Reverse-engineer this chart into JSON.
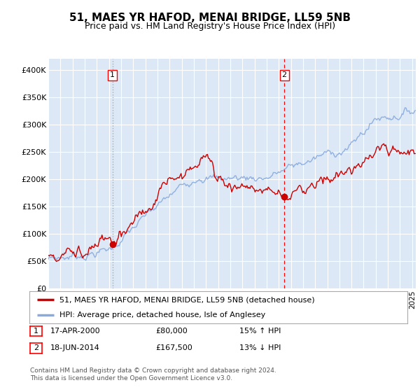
{
  "title": "51, MAES YR HAFOD, MENAI BRIDGE, LL59 5NB",
  "subtitle": "Price paid vs. HM Land Registry's House Price Index (HPI)",
  "background_color": "#ffffff",
  "plot_bg_color": "#dce8f5",
  "ylim": [
    0,
    420000
  ],
  "yticks": [
    0,
    50000,
    100000,
    150000,
    200000,
    250000,
    300000,
    350000,
    400000
  ],
  "ytick_labels": [
    "£0",
    "£50K",
    "£100K",
    "£150K",
    "£200K",
    "£250K",
    "£300K",
    "£350K",
    "£400K"
  ],
  "sale1_x": 2000.29,
  "sale1_y": 80000,
  "sale2_x": 2014.46,
  "sale2_y": 167500,
  "legend_line1": "51, MAES YR HAFOD, MENAI BRIDGE, LL59 5NB (detached house)",
  "legend_line2": "HPI: Average price, detached house, Isle of Anglesey",
  "footer": "Contains HM Land Registry data © Crown copyright and database right 2024.\nThis data is licensed under the Open Government Licence v3.0.",
  "line_color_red": "#cc0000",
  "line_color_blue": "#88aadd",
  "xmin": 1995.0,
  "xmax": 2025.3
}
